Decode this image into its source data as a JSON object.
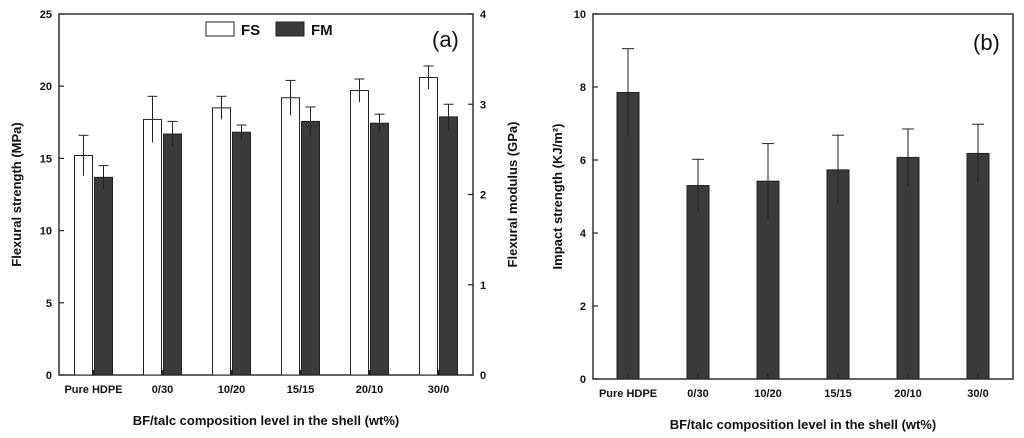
{
  "chart_data": [
    {
      "panel": "(a)",
      "type": "bar",
      "categories": [
        "Pure HDPE",
        "0/30",
        "10/20",
        "15/15",
        "20/10",
        "30/0"
      ],
      "xlabel": "BF/talc composition level in the shell (wt%)",
      "ylabel": "Flexural strength (MPa)",
      "ylabel_right": "Flexural modulus (GPa)",
      "ylim": [
        0,
        25
      ],
      "ylim_right": [
        0,
        4
      ],
      "yticks": [
        0,
        5,
        10,
        15,
        20,
        25
      ],
      "yticks_right": [
        0,
        1,
        2,
        3,
        4
      ],
      "legend": [
        "FS",
        "FM"
      ],
      "legend_position": "top-center",
      "series": [
        {
          "name": "FS",
          "axis": "left",
          "fill": "#ffffff",
          "values": [
            15.2,
            17.7,
            18.5,
            19.2,
            19.7,
            20.6
          ],
          "errors": [
            1.4,
            1.6,
            0.8,
            1.2,
            0.8,
            0.8
          ]
        },
        {
          "name": "FM",
          "axis": "right",
          "fill": "#3b3b3b",
          "values": [
            2.19,
            2.67,
            2.69,
            2.81,
            2.79,
            2.86
          ],
          "errors": [
            0.13,
            0.14,
            0.08,
            0.16,
            0.1,
            0.14
          ]
        }
      ]
    },
    {
      "panel": "(b)",
      "type": "bar",
      "categories": [
        "Pure HDPE",
        "0/30",
        "10/20",
        "15/15",
        "20/10",
        "30/0"
      ],
      "xlabel": "BF/talc composition level in the shell (wt%)",
      "ylabel": "Impact strength (KJ/m²)",
      "ylim": [
        0,
        10
      ],
      "yticks": [
        0,
        2,
        4,
        6,
        8,
        10
      ],
      "series": [
        {
          "name": "Impact strength",
          "fill": "#3b3b3b",
          "values": [
            7.85,
            5.3,
            5.42,
            5.73,
            6.07,
            6.18
          ],
          "errors": [
            1.2,
            0.72,
            1.03,
            0.95,
            0.78,
            0.8
          ]
        }
      ]
    }
  ]
}
